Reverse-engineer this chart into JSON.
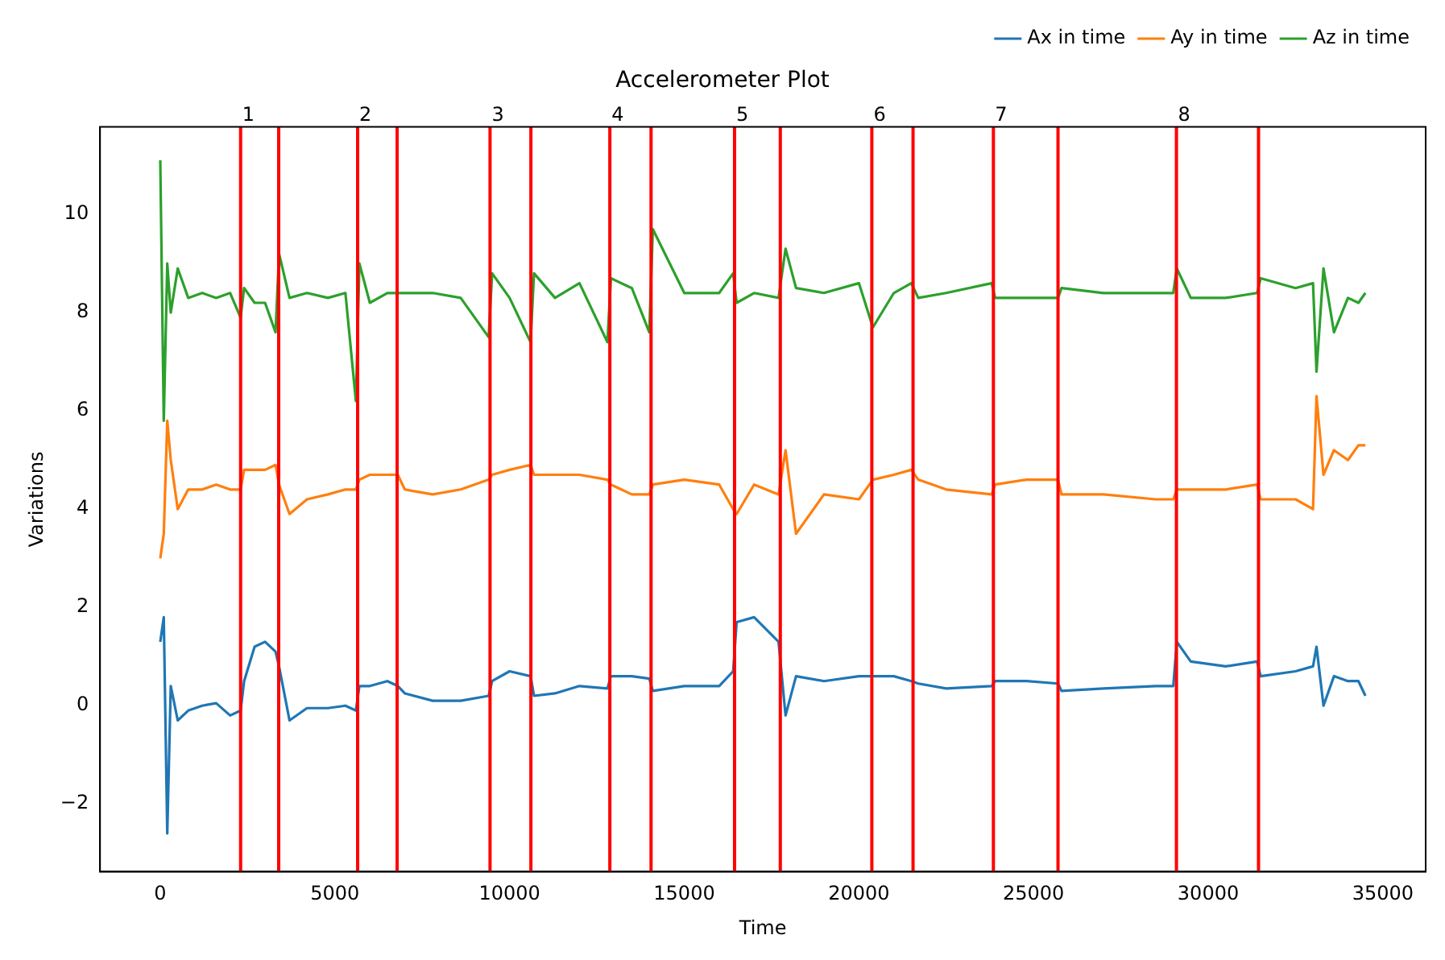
{
  "chart_data": {
    "type": "line",
    "title": "Accelerometer Plot",
    "xlabel": "Time",
    "ylabel": "Variations",
    "legend": "top right",
    "grid": false,
    "xlim": [
      -1725,
      36225
    ],
    "ylim": [
      -3.38,
      11.78
    ],
    "xticks": [
      0,
      5000,
      10000,
      15000,
      20000,
      25000,
      30000,
      35000
    ],
    "yticks": [
      {
        "value": -2,
        "label": "−2"
      },
      0,
      2,
      4,
      6,
      8,
      10
    ],
    "x": [
      0,
      100,
      200,
      300,
      500,
      800,
      1200,
      1600,
      2000,
      2300,
      2400,
      2700,
      3000,
      3300,
      3400,
      3700,
      4200,
      4800,
      5300,
      5600,
      5700,
      6000,
      6500,
      6800,
      7000,
      7800,
      8600,
      9400,
      9500,
      10000,
      10600,
      10700,
      11300,
      12000,
      12800,
      12900,
      13500,
      14000,
      14100,
      15000,
      16000,
      16400,
      16500,
      17000,
      17700,
      17900,
      18200,
      19000,
      20000,
      20400,
      21000,
      21500,
      21700,
      22500,
      23800,
      23900,
      24800,
      25700,
      25800,
      27000,
      28500,
      29000,
      29100,
      29500,
      30500,
      31400,
      31500,
      32500,
      33000,
      33100,
      33300,
      33600,
      34000,
      34300,
      34500
    ],
    "series": [
      {
        "name": "Ax in time",
        "color": "#1f77b4",
        "values": [
          1.3,
          1.8,
          -2.6,
          0.4,
          -0.3,
          -0.1,
          0.0,
          0.05,
          -0.2,
          -0.1,
          0.5,
          1.2,
          1.3,
          1.1,
          0.8,
          -0.3,
          -0.05,
          -0.05,
          0.0,
          -0.1,
          0.4,
          0.4,
          0.5,
          0.4,
          0.25,
          0.1,
          0.1,
          0.2,
          0.5,
          0.7,
          0.6,
          0.2,
          0.25,
          0.4,
          0.35,
          0.6,
          0.6,
          0.55,
          0.3,
          0.4,
          0.4,
          0.7,
          1.7,
          1.8,
          1.3,
          -0.2,
          0.6,
          0.5,
          0.6,
          0.6,
          0.6,
          0.5,
          0.45,
          0.35,
          0.4,
          0.5,
          0.5,
          0.45,
          0.3,
          0.35,
          0.4,
          0.4,
          1.3,
          0.9,
          0.8,
          0.9,
          0.6,
          0.7,
          0.8,
          1.2,
          0.0,
          0.6,
          0.5,
          0.5,
          0.2
        ]
      },
      {
        "name": "Ay in time",
        "color": "#ff7f0e",
        "values": [
          3.0,
          3.5,
          5.8,
          5.0,
          4.0,
          4.4,
          4.4,
          4.5,
          4.4,
          4.4,
          4.8,
          4.8,
          4.8,
          4.9,
          4.5,
          3.9,
          4.2,
          4.3,
          4.4,
          4.4,
          4.6,
          4.7,
          4.7,
          4.7,
          4.4,
          4.3,
          4.4,
          4.6,
          4.7,
          4.8,
          4.9,
          4.7,
          4.7,
          4.7,
          4.6,
          4.5,
          4.3,
          4.3,
          4.5,
          4.6,
          4.5,
          4.0,
          3.9,
          4.5,
          4.3,
          5.2,
          3.5,
          4.3,
          4.2,
          4.6,
          4.7,
          4.8,
          4.6,
          4.4,
          4.3,
          4.5,
          4.6,
          4.6,
          4.3,
          4.3,
          4.2,
          4.2,
          4.4,
          4.4,
          4.4,
          4.5,
          4.2,
          4.2,
          4.0,
          6.3,
          4.7,
          5.2,
          5.0,
          5.3,
          5.3
        ]
      },
      {
        "name": "Az in time",
        "color": "#2ca02c",
        "values": [
          11.1,
          5.8,
          9.0,
          8.0,
          8.9,
          8.3,
          8.4,
          8.3,
          8.4,
          7.9,
          8.5,
          8.2,
          8.2,
          7.6,
          9.2,
          8.3,
          8.4,
          8.3,
          8.4,
          6.2,
          9.0,
          8.2,
          8.4,
          8.4,
          8.4,
          8.4,
          8.3,
          7.5,
          8.8,
          8.3,
          7.4,
          8.8,
          8.3,
          8.6,
          7.4,
          8.7,
          8.5,
          7.6,
          9.7,
          8.4,
          8.4,
          8.8,
          8.2,
          8.4,
          8.3,
          9.3,
          8.5,
          8.4,
          8.6,
          7.7,
          8.4,
          8.6,
          8.3,
          8.4,
          8.6,
          8.3,
          8.3,
          8.3,
          8.5,
          8.4,
          8.4,
          8.4,
          8.9,
          8.3,
          8.3,
          8.4,
          8.7,
          8.5,
          8.6,
          6.8,
          8.9,
          7.6,
          8.3,
          8.2,
          8.4
        ]
      }
    ],
    "ref_lines": [
      {
        "axis": "x",
        "value": 2300,
        "color": "#ff0000"
      },
      {
        "axis": "x",
        "value": 3390,
        "color": "#ff0000"
      },
      {
        "axis": "x",
        "value": 5650,
        "color": "#ff0000"
      },
      {
        "axis": "x",
        "value": 6780,
        "color": "#ff0000"
      },
      {
        "axis": "x",
        "value": 9440,
        "color": "#ff0000"
      },
      {
        "axis": "x",
        "value": 10610,
        "color": "#ff0000"
      },
      {
        "axis": "x",
        "value": 12870,
        "color": "#ff0000"
      },
      {
        "axis": "x",
        "value": 14050,
        "color": "#ff0000"
      },
      {
        "axis": "x",
        "value": 16440,
        "color": "#ff0000"
      },
      {
        "axis": "x",
        "value": 17750,
        "color": "#ff0000"
      },
      {
        "axis": "x",
        "value": 20370,
        "color": "#ff0000"
      },
      {
        "axis": "x",
        "value": 21550,
        "color": "#ff0000"
      },
      {
        "axis": "x",
        "value": 23850,
        "color": "#ff0000"
      },
      {
        "axis": "x",
        "value": 25700,
        "color": "#ff0000"
      },
      {
        "axis": "x",
        "value": 29090,
        "color": "#ff0000"
      },
      {
        "axis": "x",
        "value": 31440,
        "color": "#ff0000"
      }
    ],
    "annotations": [
      {
        "text": "1",
        "x": 2300,
        "y": 11.78
      },
      {
        "text": "2",
        "x": 5650,
        "y": 11.78
      },
      {
        "text": "3",
        "x": 9440,
        "y": 11.78
      },
      {
        "text": "4",
        "x": 12870,
        "y": 11.78
      },
      {
        "text": "5",
        "x": 16440,
        "y": 11.78
      },
      {
        "text": "6",
        "x": 20370,
        "y": 11.78
      },
      {
        "text": "7",
        "x": 23850,
        "y": 11.78
      },
      {
        "text": "8",
        "x": 29090,
        "y": 11.78
      }
    ]
  }
}
